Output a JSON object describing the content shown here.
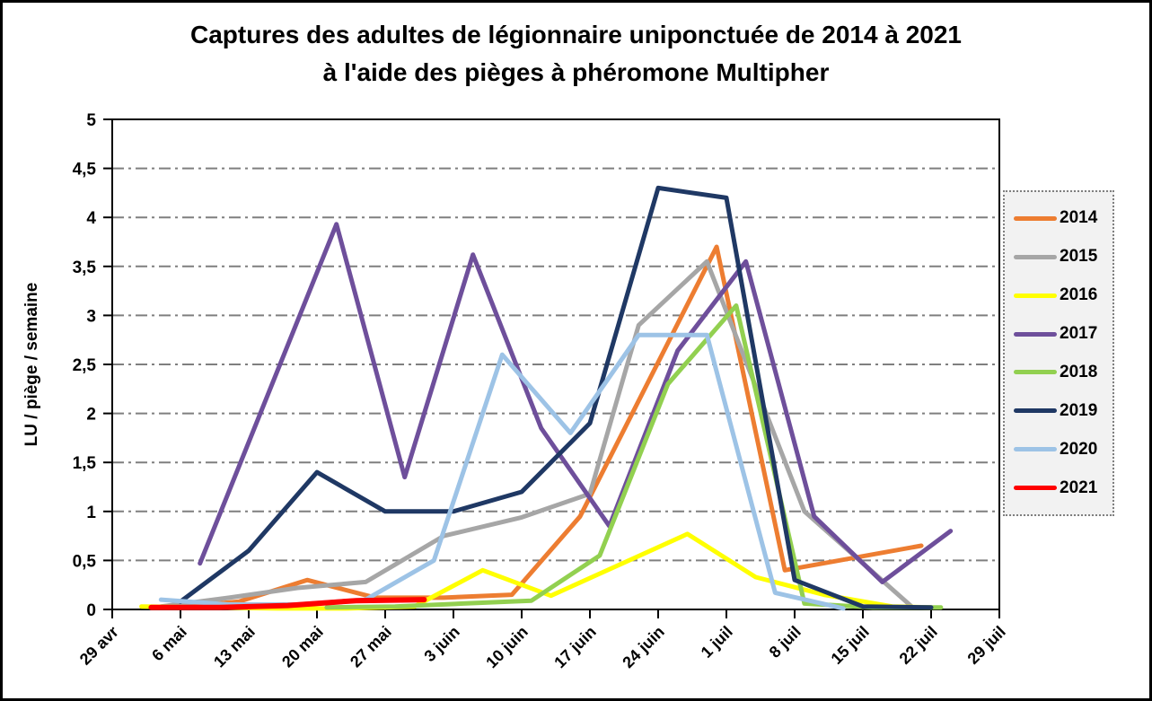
{
  "chart_data": {
    "type": "line",
    "title": [
      "Captures des adultes de légionnaire uniponctuée de 2014 à 2021",
      "à l'aide des pièges à phéromone Multipher"
    ],
    "ylabel": "LU / piège / semaine",
    "ylim": [
      0,
      5
    ],
    "ytick_step": 0.5,
    "ytick_labels": [
      "0",
      "0,5",
      "1",
      "1,5",
      "2",
      "2,5",
      "3",
      "3,5",
      "4",
      "4,5",
      "5"
    ],
    "x_unit": "days since 29 avr",
    "xlim_days": [
      0,
      91
    ],
    "xtick_interval_days": 7,
    "xtick_labels": [
      "29 avr",
      "6 mai",
      "13 mai",
      "20 mai",
      "27 mai",
      "3 juin",
      "10 juin",
      "17 juin",
      "24 juin",
      "1 juil",
      "8 juil",
      "15 juil",
      "22 juil",
      "29 juil"
    ],
    "grid": {
      "horizontal": true,
      "style": "dash-dot",
      "color": "#7F7F7F"
    },
    "legend": {
      "position": "right",
      "entries": [
        "2014",
        "2015",
        "2016",
        "2017",
        "2018",
        "2019",
        "2020",
        "2021"
      ]
    },
    "series": [
      {
        "name": "2014",
        "color": "#ED7D31",
        "points": [
          [
            6,
            0.02
          ],
          [
            13,
            0.08
          ],
          [
            20,
            0.3
          ],
          [
            27,
            0.12
          ],
          [
            34,
            0.12
          ],
          [
            41,
            0.15
          ],
          [
            48,
            0.95
          ],
          [
            62,
            3.7
          ],
          [
            69,
            0.4
          ],
          [
            83,
            0.65
          ]
        ]
      },
      {
        "name": "2015",
        "color": "#A6A6A6",
        "points": [
          [
            5,
            0.03
          ],
          [
            12,
            0.12
          ],
          [
            19,
            0.22
          ],
          [
            26,
            0.28
          ],
          [
            34,
            0.75
          ],
          [
            42,
            0.94
          ],
          [
            49,
            1.18
          ],
          [
            54,
            2.9
          ],
          [
            61,
            3.55
          ],
          [
            71,
            1.0
          ],
          [
            82,
            0.03
          ]
        ]
      },
      {
        "name": "2016",
        "color": "#FFFF00",
        "points": [
          [
            3,
            0.03
          ],
          [
            10,
            0.02
          ],
          [
            17,
            0.01
          ],
          [
            24,
            0.01
          ],
          [
            31,
            0.03
          ],
          [
            38,
            0.4
          ],
          [
            45,
            0.14
          ],
          [
            59,
            0.77
          ],
          [
            66,
            0.33
          ],
          [
            73,
            0.15
          ],
          [
            80,
            0.03
          ],
          [
            84,
            0.02
          ]
        ]
      },
      {
        "name": "2017",
        "color": "#6E4F9B",
        "points": [
          [
            9,
            0.47
          ],
          [
            23,
            3.93
          ],
          [
            30,
            1.35
          ],
          [
            37,
            3.62
          ],
          [
            44,
            1.85
          ],
          [
            51,
            0.85
          ],
          [
            58,
            2.64
          ],
          [
            65,
            3.55
          ],
          [
            72,
            0.95
          ],
          [
            79,
            0.28
          ],
          [
            86,
            0.8
          ]
        ]
      },
      {
        "name": "2018",
        "color": "#92D050",
        "points": [
          [
            22,
            0.02
          ],
          [
            29,
            0.03
          ],
          [
            36,
            0.06
          ],
          [
            43,
            0.09
          ],
          [
            50,
            0.55
          ],
          [
            57,
            2.3
          ],
          [
            64,
            3.1
          ],
          [
            71,
            0.06
          ],
          [
            78,
            0.02
          ],
          [
            85,
            0.02
          ]
        ]
      },
      {
        "name": "2019",
        "color": "#1F3864",
        "points": [
          [
            7,
            0.08
          ],
          [
            14,
            0.6
          ],
          [
            21,
            1.4
          ],
          [
            28,
            1.0
          ],
          [
            35,
            1.0
          ],
          [
            42,
            1.2
          ],
          [
            49,
            1.9
          ],
          [
            56,
            4.3
          ],
          [
            63,
            4.2
          ],
          [
            70,
            0.3
          ],
          [
            77,
            0.03
          ],
          [
            84,
            0.02
          ]
        ]
      },
      {
        "name": "2020",
        "color": "#9DC3E6",
        "points": [
          [
            5,
            0.1
          ],
          [
            12,
            0.05
          ],
          [
            19,
            0.05
          ],
          [
            26,
            0.1
          ],
          [
            33,
            0.5
          ],
          [
            40,
            2.6
          ],
          [
            47,
            1.8
          ],
          [
            54,
            2.8
          ],
          [
            61,
            2.8
          ],
          [
            68,
            0.17
          ],
          [
            75,
            0.01
          ]
        ]
      },
      {
        "name": "2021",
        "color": "#FF0000",
        "points": [
          [
            4,
            0.02
          ],
          [
            11,
            0.02
          ],
          [
            18,
            0.04
          ],
          [
            25,
            0.09
          ],
          [
            32,
            0.1
          ]
        ]
      }
    ]
  },
  "colors": {
    "background": "#FFFFFF",
    "frame_border": "#000000",
    "axis": "#000000",
    "gridline": "#7F7F7F",
    "tick_label": "#000000",
    "legend_background": "#F2F2F2",
    "legend_border": "#7F7F7F"
  }
}
